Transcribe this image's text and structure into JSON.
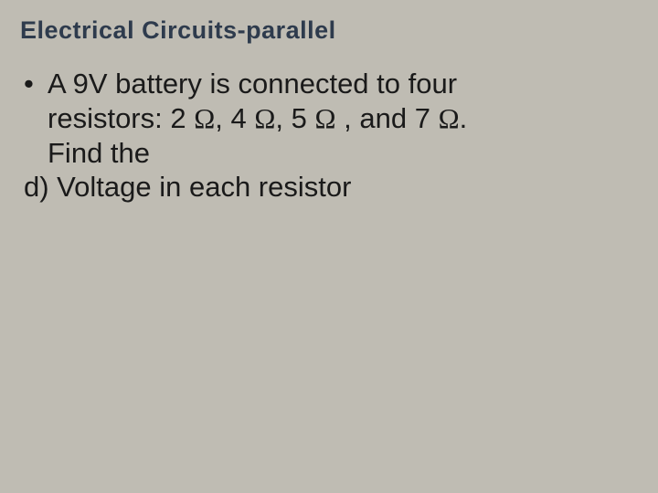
{
  "slide": {
    "background_color": "#bfbcb3",
    "title": {
      "text": "Electrical Circuits-parallel",
      "color": "#2e3b4d",
      "fontsize": 27,
      "font_weight": "bold"
    },
    "content": {
      "color": "#1a1a1a",
      "fontsize": 31,
      "bullet": "•",
      "line1": "A 9V battery is connected to four",
      "line2_pre": "resistors: 2 ",
      "line2_mid1": ", 4 ",
      "line2_mid2": ",  5 ",
      "line2_mid3": " , and 7 ",
      "line2_end": ".",
      "line3": "Find the",
      "line4": "d) Voltage in each resistor",
      "ohm_symbol": "Ω"
    }
  }
}
